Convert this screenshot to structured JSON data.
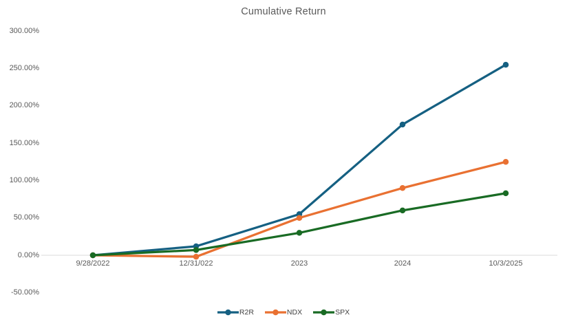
{
  "chart_data": {
    "type": "line",
    "title": "Cumulative Return",
    "categories": [
      "9/28/2022",
      "12/31/022",
      "2023",
      "2024",
      "10/3/2025"
    ],
    "series": [
      {
        "name": "R2R",
        "color": "#156082",
        "values": [
          0,
          12,
          55,
          175,
          255
        ]
      },
      {
        "name": "NDX",
        "color": "#E97132",
        "values": [
          0,
          -2,
          50,
          90,
          125
        ]
      },
      {
        "name": "SPX",
        "color": "#196B24",
        "values": [
          0,
          7,
          30,
          60,
          83
        ]
      }
    ],
    "unit": "%",
    "y_axis": {
      "min": -50,
      "max": 300,
      "step": 50,
      "tick_labels": [
        "300.00%",
        "250.00%",
        "200.00%",
        "150.00%",
        "100.00%",
        "50.00%",
        "0.00%",
        "-50.00%"
      ]
    },
    "grid": false,
    "legend_position": "bottom",
    "axis_line_color": "#D9D9D9",
    "text_color": "#595959",
    "marker_shape": "circle"
  }
}
